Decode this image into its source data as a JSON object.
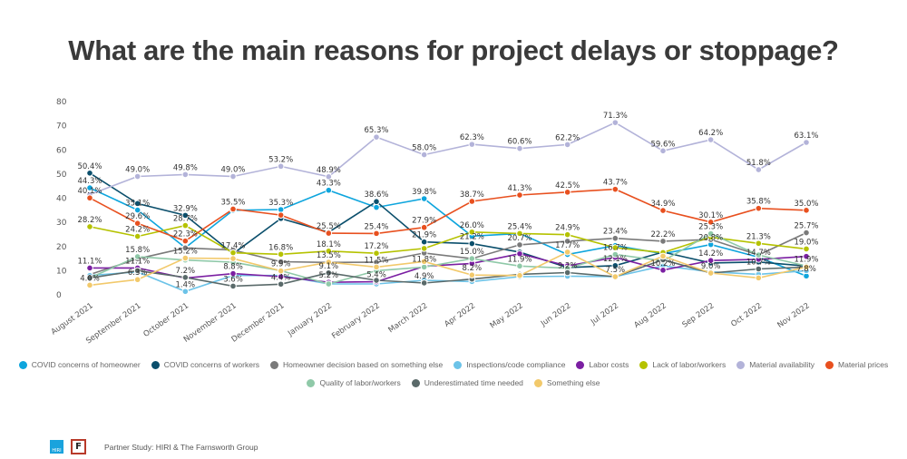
{
  "chart_data": {
    "type": "line",
    "title": "What are the main reasons for project delays or stoppage?",
    "xlabel": "",
    "ylabel": "",
    "ylim": [
      0,
      80
    ],
    "yticks": [
      0,
      10,
      20,
      30,
      40,
      50,
      60,
      70,
      80
    ],
    "grid": false,
    "legend_position": "bottom",
    "categories": [
      "August 2021",
      "September 2021",
      "October 2021",
      "November 2021",
      "December 2021",
      "January 2022",
      "February 2022",
      "March 2022",
      "Apr 2022",
      "May 2022",
      "Jun 2022",
      "Jul 2022",
      "Aug 2022",
      "Sep 2022",
      "Oct 2022",
      "Nov 2022"
    ],
    "series": [
      {
        "name": "COVID concerns of homeowner",
        "color": "#0ea5dd",
        "values": [
          44.3,
          35.1,
          19.5,
          35.0,
          35.3,
          43.3,
          36.2,
          39.8,
          24.3,
          25.4,
          16.7,
          20.4,
          17.0,
          20.8,
          15.6,
          7.8
        ],
        "labels": [
          "44.3%",
          "35.1%",
          null,
          null,
          "35.3%",
          "43.3%",
          null,
          "39.8%",
          null,
          "25.4%",
          null,
          null,
          null,
          "20.8%",
          null,
          "7.8%"
        ]
      },
      {
        "name": "COVID concerns of workers",
        "color": "#0b4f6c",
        "values": [
          50.4,
          37.8,
          32.9,
          17.0,
          31.6,
          25.9,
          38.6,
          21.9,
          21.2,
          17.7,
          11.3,
          12.1,
          17.7,
          13.2,
          13.6,
          11.9
        ],
        "labels": [
          "50.4%",
          null,
          "32.9%",
          null,
          null,
          null,
          "38.6%",
          "21.9%",
          "21.2%",
          null,
          null,
          "12.1%",
          null,
          null,
          null,
          "11.9%"
        ]
      },
      {
        "name": "Homeowner decision based on something else",
        "color": "#7a7a7a",
        "values": [
          8.4,
          14.9,
          19.4,
          18.5,
          13.7,
          13.4,
          13.5,
          17.3,
          15.0,
          20.7,
          22.2,
          23.4,
          22.2,
          22.9,
          16.5,
          25.7
        ],
        "labels": [
          null,
          null,
          null,
          null,
          null,
          null,
          null,
          null,
          "15.0%",
          "20.7%",
          null,
          "23.4%",
          "22.2%",
          null,
          null,
          "25.7%"
        ]
      },
      {
        "name": "Inspections/code compliance",
        "color": "#6cc3e8",
        "values": [
          8.0,
          9.5,
          1.4,
          8.0,
          8.0,
          4.5,
          4.5,
          6.0,
          5.5,
          7.5,
          7.7,
          7.5,
          12.0,
          9.5,
          8.5,
          10.0
        ],
        "labels": [
          null,
          null,
          "1.4%",
          null,
          null,
          null,
          null,
          null,
          null,
          null,
          null,
          null,
          null,
          null,
          null,
          null
        ]
      },
      {
        "name": "Labor costs",
        "color": "#7b1fa2",
        "values": [
          11.1,
          11.1,
          6.9,
          8.8,
          7.5,
          5.2,
          5.4,
          11.8,
          13.0,
          17.0,
          12.0,
          15.5,
          10.2,
          14.2,
          14.7,
          15.9
        ],
        "labels": [
          "11.1%",
          "11.1%",
          null,
          "8.8%",
          null,
          "5.2%",
          "5.4%",
          "11.8%",
          null,
          null,
          null,
          null,
          "10.2%",
          "14.2%",
          "14.7%",
          null
        ]
      },
      {
        "name": "Lack of labor/workers",
        "color": "#b5c200",
        "values": [
          28.2,
          24.2,
          28.7,
          17.4,
          16.8,
          18.1,
          17.2,
          19.2,
          26.0,
          25.4,
          24.9,
          19.5,
          17.5,
          23.9,
          21.3,
          19.0
        ],
        "labels": [
          "28.2%",
          "24.2%",
          "28.7%",
          "17.4%",
          "16.8%",
          "18.1%",
          "17.2%",
          null,
          "26.0%",
          null,
          "24.9%",
          null,
          null,
          null,
          "21.3%",
          "19.0%"
        ]
      },
      {
        "name": "Material availability",
        "color": "#b3b3d9",
        "values": [
          41.5,
          49.0,
          49.8,
          49.0,
          53.2,
          48.9,
          65.3,
          58.0,
          62.3,
          60.6,
          62.2,
          71.3,
          59.6,
          64.2,
          51.8,
          63.1
        ],
        "labels": [
          null,
          "49.0%",
          "49.8%",
          "49.0%",
          "53.2%",
          "48.9%",
          "65.3%",
          "58.0%",
          "62.3%",
          "60.6%",
          "62.2%",
          "71.3%",
          "59.6%",
          "64.2%",
          "51.8%",
          "63.1%"
        ]
      },
      {
        "name": "Material prices",
        "color": "#e8501f",
        "values": [
          40.1,
          29.6,
          22.3,
          35.5,
          33.0,
          25.5,
          25.4,
          27.9,
          38.7,
          41.3,
          42.5,
          43.7,
          34.9,
          30.1,
          35.8,
          35.0
        ],
        "labels": [
          "40.1%",
          "29.6%",
          "22.3%",
          "35.5%",
          null,
          "25.5%",
          "25.4%",
          "27.9%",
          "38.7%",
          "41.3%",
          "42.5%",
          "43.7%",
          "34.9%",
          "30.1%",
          "35.8%",
          "35.0%"
        ]
      },
      {
        "name": "Quality of labor/workers",
        "color": "#8fc9a8",
        "values": [
          7.0,
          15.8,
          14.4,
          13.5,
          10.0,
          4.5,
          10.0,
          11.5,
          15.0,
          11.9,
          11.0,
          16.7,
          14.0,
          25.3,
          16.5,
          12.0
        ],
        "labels": [
          null,
          "15.8%",
          null,
          null,
          null,
          null,
          null,
          null,
          null,
          "11.9%",
          null,
          "16.7%",
          null,
          "25.3%",
          null,
          null
        ]
      },
      {
        "name": "Underestimated time needed",
        "color": "#5a6a6a",
        "values": [
          7.0,
          10.0,
          7.2,
          3.6,
          4.4,
          9.1,
          6.0,
          4.9,
          6.5,
          8.5,
          9.2,
          7.5,
          14.5,
          9.0,
          10.7,
          11.5
        ],
        "labels": [
          null,
          null,
          "7.2%",
          "3.6%",
          "4.4%",
          "9.1%",
          null,
          "4.9%",
          null,
          null,
          "9.2%",
          null,
          null,
          null,
          "10.7%",
          null
        ]
      },
      {
        "name": "Something else",
        "color": "#f2c96b",
        "values": [
          4.0,
          6.3,
          15.2,
          15.0,
          9.9,
          13.5,
          11.5,
          13.8,
          8.2,
          8.0,
          17.7,
          7.5,
          16.0,
          9.0,
          7.0,
          11.5
        ],
        "labels": [
          "4.0%",
          "6.3%",
          "15.2%",
          null,
          "9.9%",
          "13.5%",
          "11.5%",
          null,
          "8.2%",
          null,
          "17.7%",
          "7.5%",
          null,
          "9.0%",
          null,
          null
        ]
      }
    ]
  },
  "footer": {
    "text": "Partner Study:  HIRI & The Farnsworth Group",
    "hiri_logo_text": "HIRI",
    "farnsworth_logo_text": "F"
  }
}
